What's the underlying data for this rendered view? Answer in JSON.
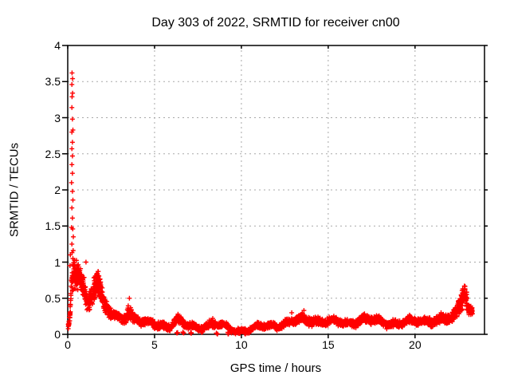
{
  "window": {
    "background": "#ffffff"
  },
  "chart_data": {
    "type": "scatter",
    "title": "Day 303 of 2022, SRMTID for receiver cn00",
    "xlabel": "GPS time / hours",
    "ylabel": "SRMTID / TECUs",
    "xlim": [
      0,
      24
    ],
    "ylim": [
      0,
      4
    ],
    "xticks": [
      0,
      5,
      10,
      15,
      20
    ],
    "yticks": [
      0,
      0.5,
      1,
      1.5,
      2,
      2.5,
      3,
      3.5,
      4
    ],
    "grid": {
      "show": true,
      "style": "dashed",
      "color": "#a8a8a8"
    },
    "border_color": "#000000",
    "marker": {
      "shape": "plus",
      "color": "#ff0000",
      "size": 6
    },
    "series": [
      {
        "name": "SRMTID",
        "spike_points": [
          [
            0.25,
            3.62
          ],
          [
            0.28,
            3.54
          ],
          [
            0.24,
            3.46
          ],
          [
            0.28,
            3.34
          ],
          [
            0.25,
            3.29
          ],
          [
            0.24,
            3.14
          ],
          [
            0.27,
            2.98
          ],
          [
            0.3,
            2.83
          ],
          [
            0.24,
            2.8
          ],
          [
            0.27,
            2.66
          ],
          [
            0.24,
            2.57
          ],
          [
            0.27,
            2.47
          ],
          [
            0.24,
            2.35
          ],
          [
            0.27,
            2.23
          ],
          [
            0.22,
            2.1
          ],
          [
            0.27,
            1.98
          ],
          [
            0.3,
            1.86
          ],
          [
            0.24,
            1.75
          ],
          [
            0.27,
            1.61
          ],
          [
            0.22,
            1.48
          ],
          [
            0.29,
            1.46
          ],
          [
            0.32,
            1.35
          ],
          [
            0.24,
            1.25
          ],
          [
            0.31,
            1.16
          ],
          [
            0.25,
            1.13
          ],
          [
            0.3,
            1.05
          ],
          [
            0.15,
            1.1
          ],
          [
            0.13,
            0.95
          ]
        ],
        "band": [
          {
            "t": 0.02,
            "lo": 0.03,
            "hi": 0.12,
            "d": 160
          },
          {
            "t": 0.12,
            "lo": 0.05,
            "hi": 0.25,
            "d": 160
          },
          {
            "t": 0.22,
            "lo": 0.5,
            "hi": 1.0,
            "d": 230
          },
          {
            "t": 0.45,
            "lo": 0.6,
            "hi": 1.05,
            "d": 230
          },
          {
            "t": 0.7,
            "lo": 0.55,
            "hi": 1.0,
            "d": 230
          },
          {
            "t": 0.95,
            "lo": 0.45,
            "hi": 0.8,
            "d": 210
          },
          {
            "t": 1.15,
            "lo": 0.3,
            "hi": 0.55,
            "d": 200
          },
          {
            "t": 1.35,
            "lo": 0.35,
            "hi": 0.7,
            "d": 200
          },
          {
            "t": 1.55,
            "lo": 0.45,
            "hi": 0.9,
            "d": 220
          },
          {
            "t": 1.7,
            "lo": 0.5,
            "hi": 0.95,
            "d": 220
          },
          {
            "t": 1.9,
            "lo": 0.4,
            "hi": 0.75,
            "d": 210
          },
          {
            "t": 2.1,
            "lo": 0.28,
            "hi": 0.5,
            "d": 190
          },
          {
            "t": 2.45,
            "lo": 0.2,
            "hi": 0.38,
            "d": 175
          },
          {
            "t": 2.9,
            "lo": 0.16,
            "hi": 0.3,
            "d": 165
          },
          {
            "t": 3.25,
            "lo": 0.16,
            "hi": 0.32,
            "d": 165
          },
          {
            "t": 3.5,
            "lo": 0.22,
            "hi": 0.46,
            "d": 185
          },
          {
            "t": 3.75,
            "lo": 0.16,
            "hi": 0.3,
            "d": 165
          },
          {
            "t": 4.3,
            "lo": 0.1,
            "hi": 0.22,
            "d": 155
          },
          {
            "t": 5.0,
            "lo": 0.08,
            "hi": 0.2,
            "d": 145
          },
          {
            "t": 5.9,
            "lo": 0.07,
            "hi": 0.18,
            "d": 145
          },
          {
            "t": 6.3,
            "lo": 0.12,
            "hi": 0.26,
            "d": 155
          },
          {
            "t": 6.8,
            "lo": 0.06,
            "hi": 0.17,
            "d": 145
          },
          {
            "t": 7.5,
            "lo": 0.05,
            "hi": 0.15,
            "d": 145
          },
          {
            "t": 8.2,
            "lo": 0.08,
            "hi": 0.2,
            "d": 155
          },
          {
            "t": 8.7,
            "lo": 0.07,
            "hi": 0.17,
            "d": 145
          },
          {
            "t": 9.3,
            "lo": 0.04,
            "hi": 0.12,
            "d": 135
          },
          {
            "t": 9.9,
            "lo": 0.02,
            "hi": 0.1,
            "d": 135
          },
          {
            "t": 10.5,
            "lo": 0.03,
            "hi": 0.11,
            "d": 135
          },
          {
            "t": 11.1,
            "lo": 0.05,
            "hi": 0.14,
            "d": 145
          },
          {
            "t": 11.9,
            "lo": 0.08,
            "hi": 0.18,
            "d": 155
          },
          {
            "t": 12.7,
            "lo": 0.1,
            "hi": 0.22,
            "d": 165
          },
          {
            "t": 13.4,
            "lo": 0.13,
            "hi": 0.26,
            "d": 175
          },
          {
            "t": 14.0,
            "lo": 0.14,
            "hi": 0.28,
            "d": 175
          },
          {
            "t": 14.7,
            "lo": 0.12,
            "hi": 0.24,
            "d": 175
          },
          {
            "t": 15.5,
            "lo": 0.1,
            "hi": 0.21,
            "d": 175
          },
          {
            "t": 16.3,
            "lo": 0.12,
            "hi": 0.23,
            "d": 175
          },
          {
            "t": 17.0,
            "lo": 0.14,
            "hi": 0.27,
            "d": 175
          },
          {
            "t": 17.7,
            "lo": 0.12,
            "hi": 0.24,
            "d": 175
          },
          {
            "t": 18.5,
            "lo": 0.1,
            "hi": 0.22,
            "d": 175
          },
          {
            "t": 19.3,
            "lo": 0.1,
            "hi": 0.21,
            "d": 175
          },
          {
            "t": 20.1,
            "lo": 0.12,
            "hi": 0.24,
            "d": 175
          },
          {
            "t": 20.9,
            "lo": 0.14,
            "hi": 0.27,
            "d": 175
          },
          {
            "t": 21.6,
            "lo": 0.12,
            "hi": 0.26,
            "d": 175
          },
          {
            "t": 22.1,
            "lo": 0.13,
            "hi": 0.28,
            "d": 180
          },
          {
            "t": 22.4,
            "lo": 0.2,
            "hi": 0.42,
            "d": 210
          },
          {
            "t": 22.65,
            "lo": 0.32,
            "hi": 0.62,
            "d": 230
          },
          {
            "t": 22.85,
            "lo": 0.45,
            "hi": 0.78,
            "d": 245
          },
          {
            "t": 23.0,
            "lo": 0.34,
            "hi": 0.6,
            "d": 230
          },
          {
            "t": 23.1,
            "lo": 0.27,
            "hi": 0.42,
            "d": 225
          },
          {
            "t": 23.3,
            "lo": 0.26,
            "hi": 0.38,
            "d": 205
          }
        ],
        "extra_points": [
          [
            1.05,
            1.0
          ],
          [
            3.55,
            0.5
          ],
          [
            6.35,
            0.28
          ],
          [
            8.35,
            0.22
          ],
          [
            12.9,
            0.3
          ],
          [
            13.6,
            0.33
          ],
          [
            21.5,
            0.3
          ],
          [
            23.15,
            0.33
          ],
          [
            23.22,
            0.3
          ]
        ],
        "near_zero_times": [
          6.3,
          6.65,
          7.1,
          8.6,
          9.25,
          9.45,
          9.7,
          9.9,
          10.45
        ]
      }
    ]
  }
}
